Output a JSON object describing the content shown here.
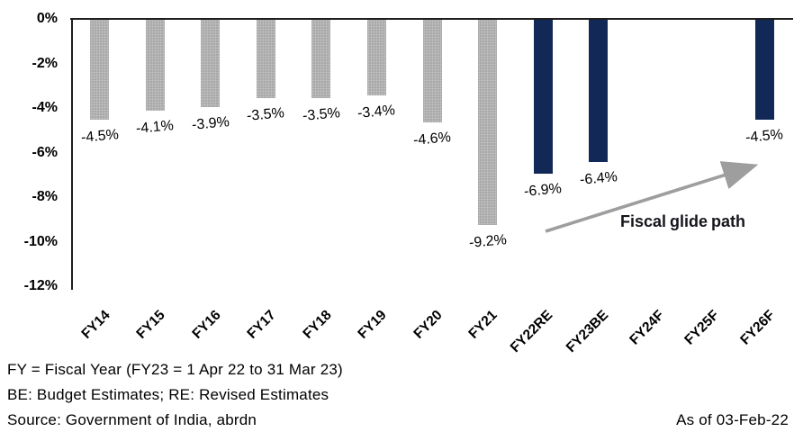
{
  "chart_data": {
    "type": "bar",
    "title": "",
    "xlabel": "",
    "ylabel": "",
    "ylim": [
      -12,
      0
    ],
    "grid": false,
    "legend_position": "none",
    "yticks": [
      {
        "label": "0%",
        "value": 0
      },
      {
        "label": "-2%",
        "value": -2
      },
      {
        "label": "-4%",
        "value": -4
      },
      {
        "label": "-6%",
        "value": -6
      },
      {
        "label": "-8%",
        "value": -8
      },
      {
        "label": "-10%",
        "value": -10
      },
      {
        "label": "-12%",
        "value": -12
      }
    ],
    "points": [
      {
        "category": "FY14",
        "value": -4.5,
        "label": "-4.5%",
        "style": "actual"
      },
      {
        "category": "FY15",
        "value": -4.1,
        "label": "-4.1%",
        "style": "actual"
      },
      {
        "category": "FY16",
        "value": -3.9,
        "label": "-3.9%",
        "style": "actual"
      },
      {
        "category": "FY17",
        "value": -3.5,
        "label": "-3.5%",
        "style": "actual"
      },
      {
        "category": "FY18",
        "value": -3.5,
        "label": "-3.5%",
        "style": "actual"
      },
      {
        "category": "FY19",
        "value": -3.4,
        "label": "-3.4%",
        "style": "actual"
      },
      {
        "category": "FY20",
        "value": -4.6,
        "label": "-4.6%",
        "style": "actual"
      },
      {
        "category": "FY21",
        "value": -9.2,
        "label": "-9.2%",
        "style": "actual"
      },
      {
        "category": "FY22RE",
        "value": -6.9,
        "label": "-6.9%",
        "style": "estimate"
      },
      {
        "category": "FY23BE",
        "value": -6.4,
        "label": "-6.4%",
        "style": "estimate"
      },
      {
        "category": "FY24F",
        "value": null,
        "label": "",
        "style": "estimate"
      },
      {
        "category": "FY25F",
        "value": null,
        "label": "",
        "style": "estimate"
      },
      {
        "category": "FY26F",
        "value": -4.5,
        "label": "-4.5%",
        "style": "estimate"
      }
    ],
    "annotation": {
      "text": "Fiscal glide path"
    },
    "colors": {
      "actual": "#a9a9a9",
      "estimate": "#122856",
      "arrow": "#9e9e9e",
      "axis": "#1f1f1f"
    }
  },
  "footer": {
    "line1": "FY = Fiscal Year (FY23 = 1 Apr 22 to 31 Mar 23)",
    "line2": "BE: Budget Estimates; RE: Revised Estimates",
    "line3": "Source: Government of India, abrdn",
    "as_of": "As of 03-Feb-22"
  }
}
